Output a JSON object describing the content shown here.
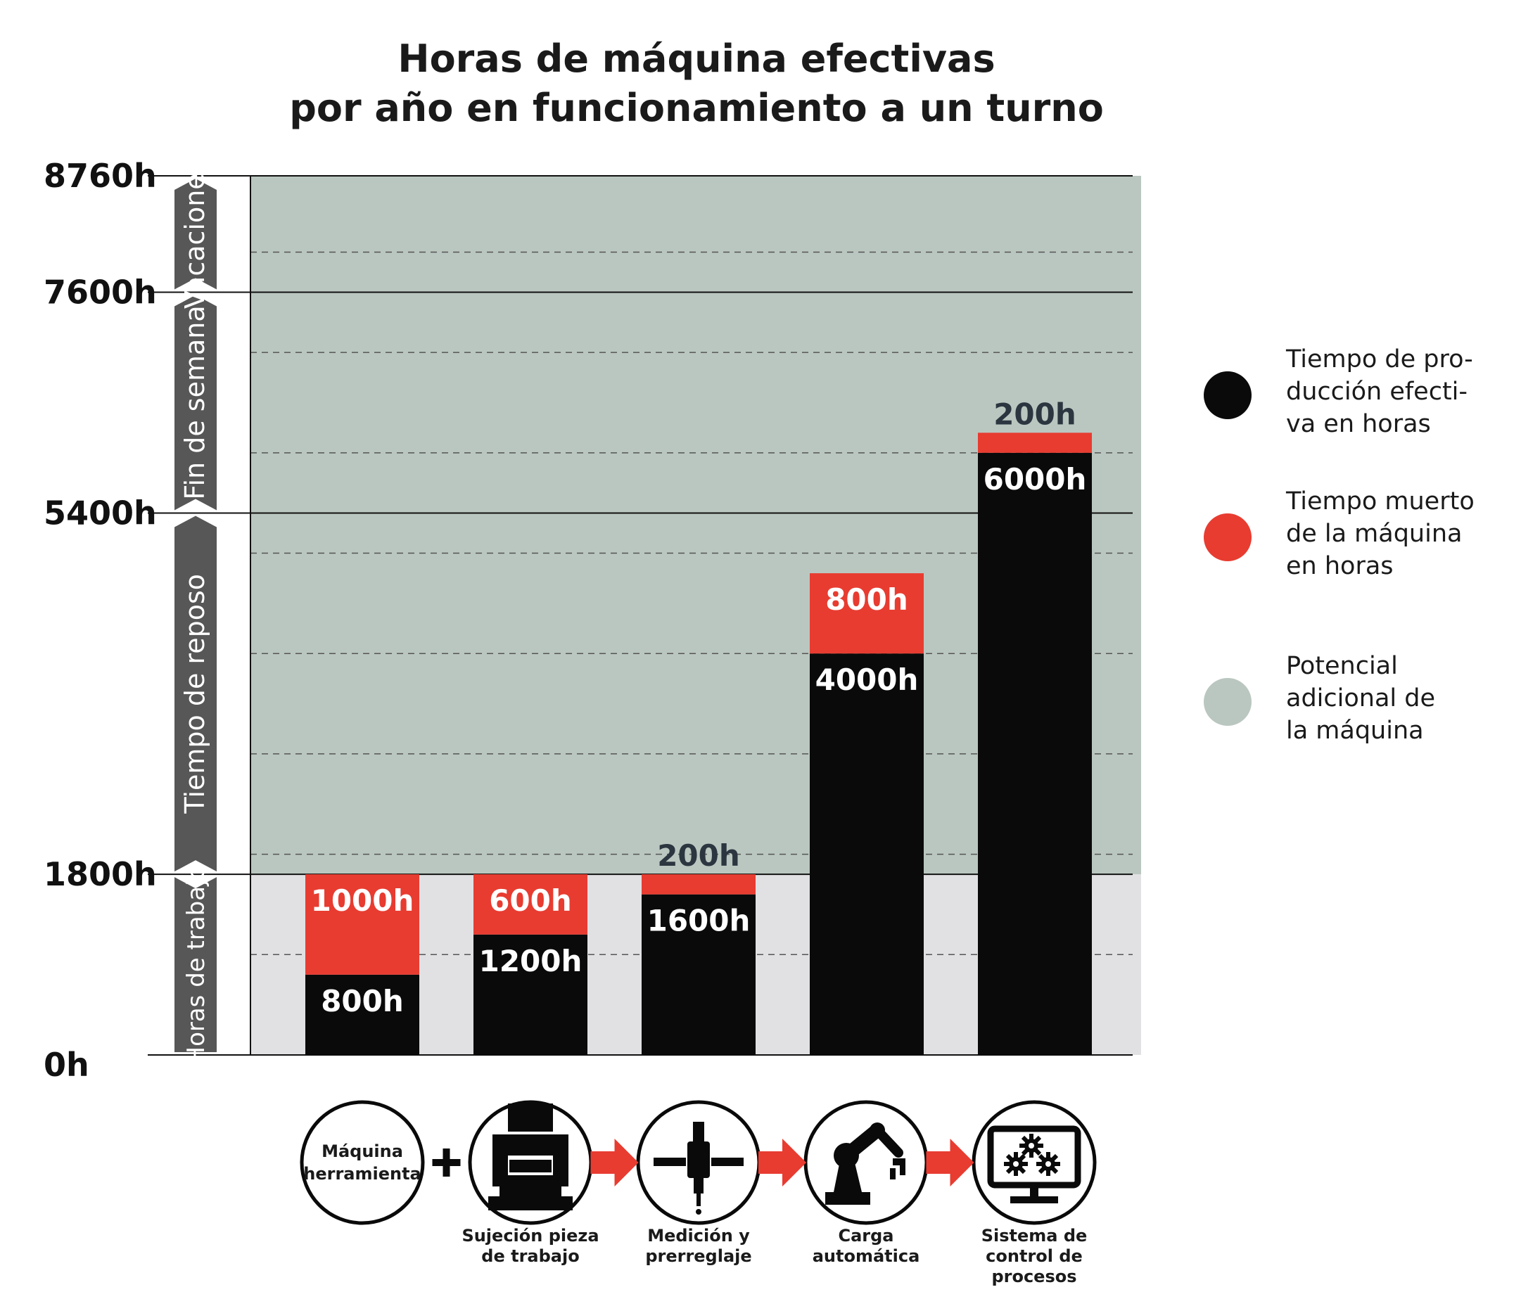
{
  "chart_data": {
    "type": "bar",
    "stacked": true,
    "title_lines": [
      "Horas de máquina efectivas",
      "por año en funcionamiento a un turno"
    ],
    "yticks": [
      {
        "value": 0,
        "label": "0h"
      },
      {
        "value": 1800,
        "label": "1800h"
      },
      {
        "value": 5400,
        "label": "5400h"
      },
      {
        "value": 7600,
        "label": "7600h"
      },
      {
        "value": 8760,
        "label": "8760h"
      }
    ],
    "ylim": [
      0,
      8760
    ],
    "minor_grid_step": 1000,
    "bands": [
      {
        "from": 0,
        "to": 1800,
        "color": "#e1e1e3"
      },
      {
        "from": 1800,
        "to": 8760,
        "color": "#bac7c0"
      }
    ],
    "time_segments": [
      {
        "from": 0,
        "to": 1800,
        "label": "Horas de trabajo"
      },
      {
        "from": 1800,
        "to": 5400,
        "label": "Tiempo de reposo"
      },
      {
        "from": 5400,
        "to": 7600,
        "label": "Fin de semana"
      },
      {
        "from": 7600,
        "to": 8760,
        "label": "Vacaciones"
      }
    ],
    "bars": [
      {
        "production": 800,
        "downtime": 1000,
        "production_label": "800h",
        "downtime_label": "1000h"
      },
      {
        "production": 1200,
        "downtime": 600,
        "production_label": "1200h",
        "downtime_label": "600h"
      },
      {
        "production": 1600,
        "downtime": 200,
        "production_label": "1600h",
        "downtime_label": "200h"
      },
      {
        "production": 4000,
        "downtime": 800,
        "production_label": "4000h",
        "downtime_label": "800h"
      },
      {
        "production": 6000,
        "downtime": 200,
        "production_label": "6000h",
        "downtime_label": "200h"
      }
    ],
    "colors": {
      "production": "#0a0a0a",
      "downtime": "#e83c31",
      "potential": "#bac7c0",
      "work": "#e1e1e3",
      "segment": "#575757"
    },
    "legend": [
      {
        "color": "#0a0a0a",
        "lines": [
          "Tiempo de pro-",
          "ducción efecti-",
          "va en horas"
        ]
      },
      {
        "color": "#e83c31",
        "lines": [
          "Tiempo muerto",
          "de la máquina",
          "en horas"
        ]
      },
      {
        "color": "#bac7c0",
        "lines": [
          "Potencial",
          "adicional de",
          "la máquina"
        ]
      }
    ],
    "legend_position": "right"
  },
  "steps": [
    {
      "icon": "machine-tool-icon",
      "inner_lines": [
        "Máquina",
        "herramienta"
      ],
      "caption_lines": []
    },
    {
      "icon": "workpiece-clamping-icon",
      "inner_lines": [],
      "caption_lines": [
        "Sujeción pieza",
        "de trabajo"
      ]
    },
    {
      "icon": "measuring-presetting-icon",
      "inner_lines": [],
      "caption_lines": [
        "Medición y",
        "prerreglaje"
      ]
    },
    {
      "icon": "robot-arm-icon",
      "inner_lines": [],
      "caption_lines": [
        "Carga",
        "automática"
      ]
    },
    {
      "icon": "process-control-monitor-icon",
      "inner_lines": [],
      "caption_lines": [
        "Sistema de",
        "control de",
        "procesos"
      ]
    }
  ],
  "connectors": [
    "plus",
    "arrow",
    "arrow",
    "arrow"
  ]
}
